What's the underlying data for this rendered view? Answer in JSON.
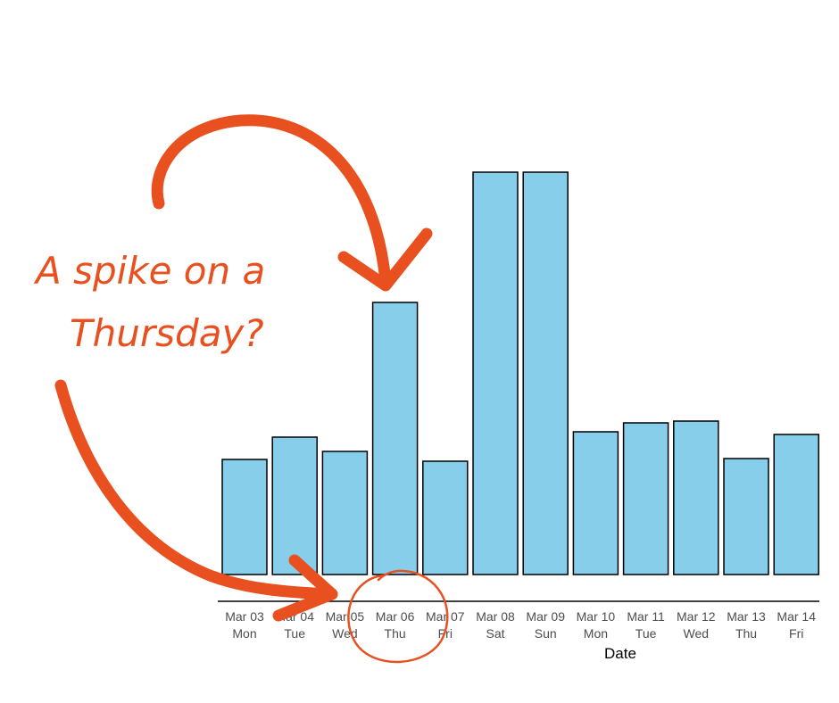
{
  "chart_data": {
    "type": "bar",
    "categories": [
      "Mar 03",
      "Mar 04",
      "Mar 05",
      "Mar 06",
      "Mar 07",
      "Mar 08",
      "Mar 09",
      "Mar 10",
      "Mar 11",
      "Mar 12",
      "Mar 13",
      "Mar 14"
    ],
    "weekdays": [
      "Mon",
      "Tue",
      "Wed",
      "Thu",
      "Fri",
      "Sat",
      "Sun",
      "Mon",
      "Tue",
      "Wed",
      "Thu",
      "Fri"
    ],
    "values": [
      129,
      154,
      138,
      305,
      127,
      451,
      451,
      160,
      170,
      172,
      130,
      157
    ],
    "ylim": [
      0,
      451
    ],
    "xlabel": "Date",
    "ylabel": "",
    "title": "",
    "grid": false,
    "bar_color": "#87ceeb",
    "bar_outline": "#000000"
  },
  "annotation": {
    "line1": "A spike on a",
    "line2": "Thursday?",
    "color": "#e8501f",
    "highlighted_category": "Mar 06"
  }
}
